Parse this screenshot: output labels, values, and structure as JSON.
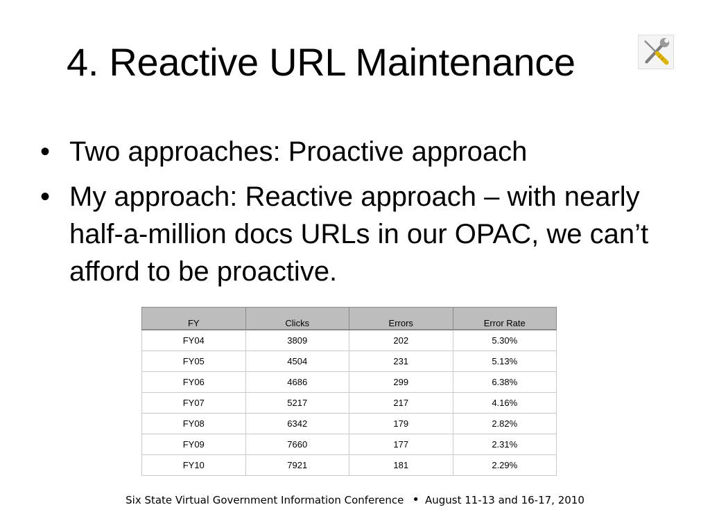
{
  "slide": {
    "title": "4. Reactive URL Maintenance",
    "icon": "tools-icon"
  },
  "bullets": [
    {
      "marker": "•",
      "text": "Two approaches: Proactive approach"
    },
    {
      "marker": "•",
      "text": "My approach: Reactive approach – with nearly half-a-million docs URLs in our OPAC, we can’t afford to be proactive."
    }
  ],
  "table": {
    "headers": [
      "FY",
      "Clicks",
      "Errors",
      "Error Rate"
    ],
    "rows": [
      [
        "FY04",
        "3809",
        "202",
        "5.30%"
      ],
      [
        "FY05",
        "4504",
        "231",
        "5.13%"
      ],
      [
        "FY06",
        "4686",
        "299",
        "6.38%"
      ],
      [
        "FY07",
        "5217",
        "217",
        "4.16%"
      ],
      [
        "FY08",
        "6342",
        "179",
        "2.82%"
      ],
      [
        "FY09",
        "7660",
        "177",
        "2.31%"
      ],
      [
        "FY10",
        "7921",
        "181",
        "2.29%"
      ]
    ]
  },
  "footer": {
    "left": "Six State Virtual Government Information Conference",
    "separator": "•",
    "right": "August 11-13 and 16-17, 2010"
  },
  "colors": {
    "header_bg": "#bdbdbd",
    "border": "#c9c9c9"
  }
}
